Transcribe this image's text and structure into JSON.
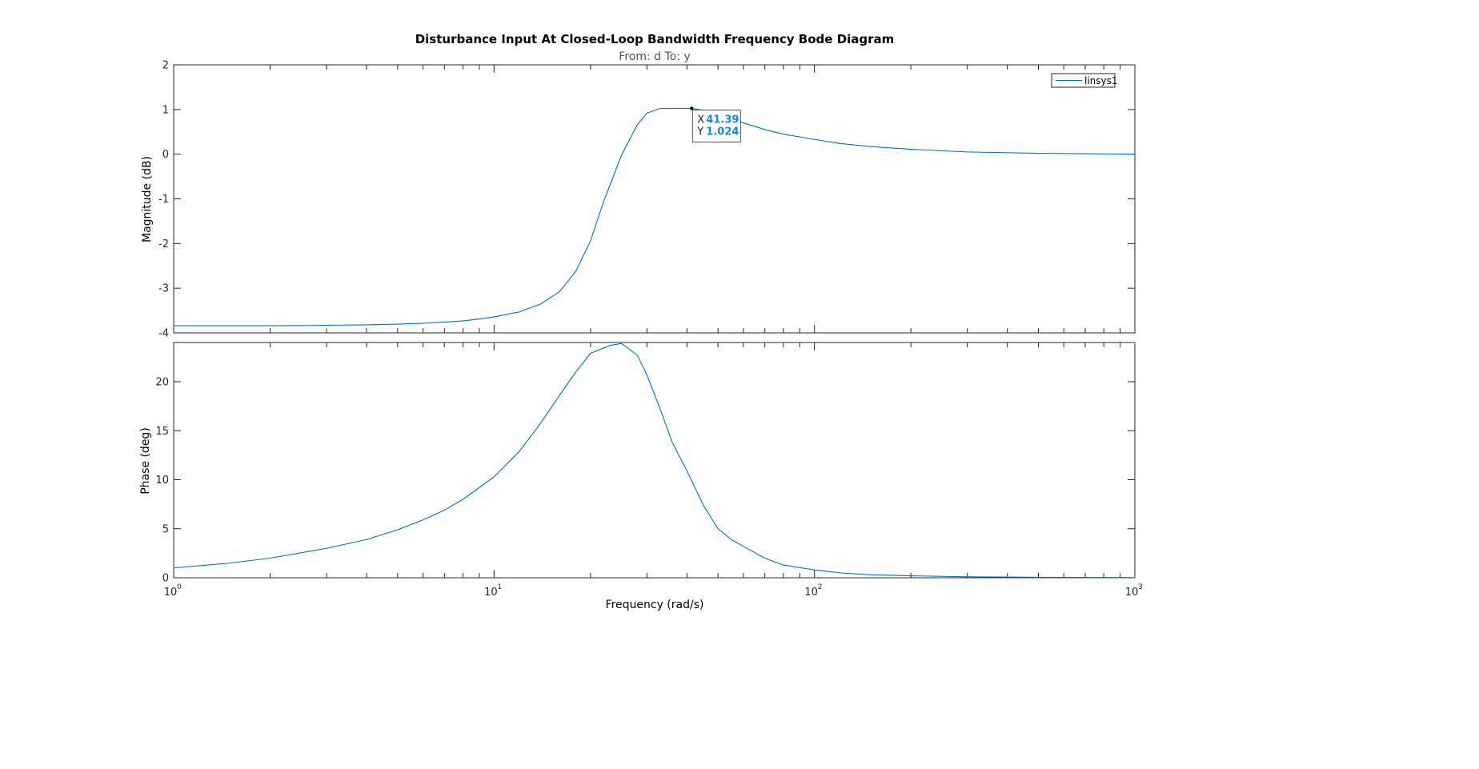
{
  "chart_data": {
    "type": "line",
    "title": "Disturbance Input At Closed-Loop Bandwidth Frequency Bode Diagram",
    "subtitle": "From: d  To: y",
    "xlabel": "Frequency  (rad/s)",
    "xscale": "log",
    "xlim": [
      1,
      1000
    ],
    "x_ticks": [
      {
        "base": "10",
        "exp": "0",
        "value": 1
      },
      {
        "base": "10",
        "exp": "1",
        "value": 10
      },
      {
        "base": "10",
        "exp": "2",
        "value": 100
      },
      {
        "base": "10",
        "exp": "3",
        "value": 1000
      }
    ],
    "legend": {
      "entries": [
        "linsys1"
      ],
      "placement": "top-right"
    },
    "series_color": "#0072bd",
    "panels": [
      {
        "name": "magnitude",
        "ylabel": "Magnitude (dB)",
        "ylim": [
          -4,
          2
        ],
        "yticks": [
          "2",
          "1",
          "0",
          "-1",
          "-2",
          "-3",
          "-4"
        ],
        "series": [
          {
            "name": "linsys1",
            "x": [
              1,
              1.5,
              2,
              2.5,
              3,
              4,
              5,
              6,
              7,
              8,
              9,
              10,
              12,
              14,
              16,
              18,
              20,
              22,
              25,
              28,
              30,
              33,
              36,
              41.39,
              46,
              52,
              60,
              70,
              80,
              100,
              120,
              150,
              200,
              300,
              500,
              700,
              1000
            ],
            "y": [
              -3.84,
              -3.84,
              -3.84,
              -3.835,
              -3.83,
              -3.82,
              -3.805,
              -3.785,
              -3.76,
              -3.73,
              -3.69,
              -3.64,
              -3.53,
              -3.35,
              -3.08,
              -2.62,
              -1.94,
              -1.05,
              -0.02,
              0.66,
              0.92,
              1.024,
              1.025,
              1.024,
              0.97,
              0.86,
              0.7,
              0.55,
              0.45,
              0.33,
              0.24,
              0.17,
              0.11,
              0.05,
              0.02,
              0.01,
              0.0
            ]
          }
        ],
        "datatip": {
          "x_label": "X",
          "x_value": "41.39",
          "y_label": "Y",
          "y_value": "1.024",
          "x": 41.39,
          "y": 1.024
        }
      },
      {
        "name": "phase",
        "ylabel": "Phase (deg)",
        "ylim": [
          0,
          24
        ],
        "yticks": [
          "20",
          "15",
          "10",
          "5",
          "0"
        ],
        "series": [
          {
            "name": "linsys1",
            "x": [
              1,
              1.5,
              2,
              3,
              4,
              5,
              6,
              7,
              8,
              10,
              12,
              14,
              16,
              18,
              20,
              23,
              25,
              28,
              30,
              33,
              36,
              40,
              45,
              50,
              55,
              60,
              70,
              80,
              100,
              120,
              150,
              200,
              300,
              500,
              1000
            ],
            "y": [
              1.0,
              1.5,
              2.0,
              3.0,
              3.9,
              4.9,
              5.9,
              6.9,
              8.0,
              10.3,
              12.9,
              15.8,
              18.6,
              21.0,
              22.9,
              23.7,
              23.9,
              22.7,
              20.7,
              17.2,
              13.8,
              10.9,
              7.4,
              5.0,
              3.9,
              3.2,
              2.0,
              1.3,
              0.8,
              0.5,
              0.3,
              0.2,
              0.1,
              0.05,
              0.02
            ]
          }
        ]
      }
    ]
  }
}
